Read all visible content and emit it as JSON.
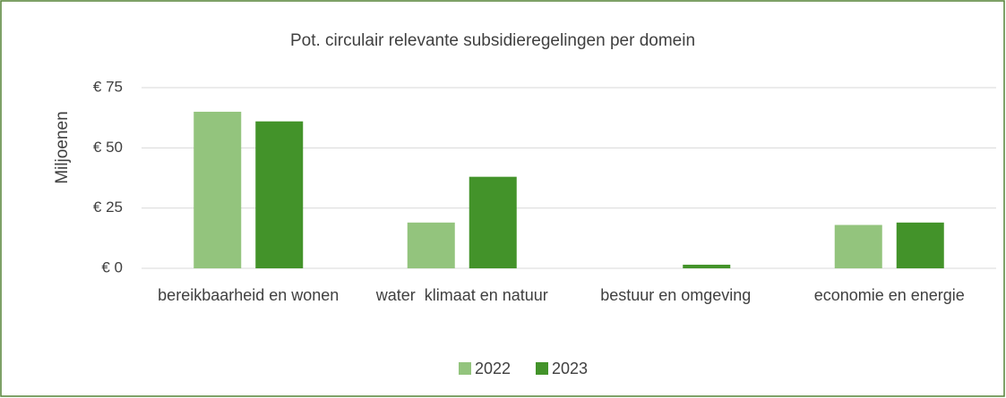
{
  "chart_data": {
    "type": "bar",
    "title": "Pot. circulair relevante subsidieregelingen per domein",
    "ylabel": "Miljoenen",
    "categories": [
      "bereikbaarheid en wonen",
      "water  klimaat en natuur",
      "bestuur en omgeving",
      "economie en energie"
    ],
    "series": [
      {
        "name": "2022",
        "color": "#93c47d",
        "values": [
          65,
          19,
          0,
          18
        ]
      },
      {
        "name": "2023",
        "color": "#43932a",
        "values": [
          61,
          38,
          1.5,
          19
        ]
      }
    ],
    "ylim": [
      0,
      75
    ],
    "yticks": [
      {
        "value": 0,
        "label": "€ 0"
      },
      {
        "value": 25,
        "label": "€ 25"
      },
      {
        "value": 50,
        "label": "€ 50"
      },
      {
        "value": 75,
        "label": "€ 75"
      }
    ],
    "grid": true,
    "legend": "bottom"
  }
}
